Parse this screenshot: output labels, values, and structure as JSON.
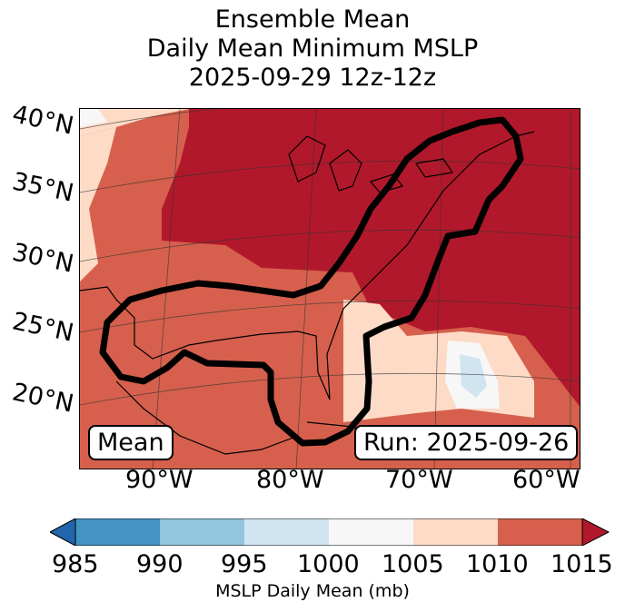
{
  "title": {
    "line1": "Ensemble Mean",
    "line2": "Daily Mean Minimum MSLP",
    "line3": "2025-09-29 12z-12z"
  },
  "map": {
    "latitude_labels": [
      "40°N",
      "35°N",
      "30°N",
      "25°N",
      "20°N"
    ],
    "longitude_labels": [
      "90°W",
      "80°W",
      "70°W",
      "60°W"
    ],
    "mean_label": "Mean",
    "run_label": "Run: 2025-09-26",
    "contour_color": "#000000"
  },
  "colorbar": {
    "ticks": [
      "985",
      "990",
      "995",
      "1000",
      "1005",
      "1010",
      "1015"
    ],
    "label": "MSLP Daily Mean (mb)",
    "colors": [
      "#2166ac",
      "#4393c3",
      "#92c5de",
      "#d1e5f0",
      "#f7f7f7",
      "#fddbc7",
      "#d6604d",
      "#b2182b"
    ]
  }
}
